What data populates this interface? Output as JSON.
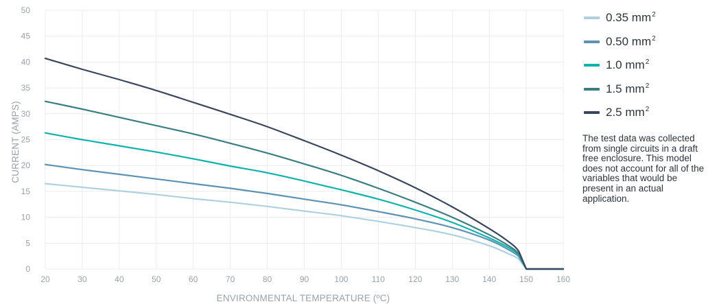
{
  "chart_data": {
    "type": "line",
    "xlabel": "ENVIRONMENTAL TEMPERATURE (ºC)",
    "ylabel": "CURRENT (AMPS)",
    "xlim": [
      20,
      160
    ],
    "ylim": [
      0,
      50
    ],
    "x_ticks": [
      20,
      30,
      40,
      50,
      60,
      70,
      80,
      90,
      100,
      110,
      120,
      130,
      140,
      150,
      160
    ],
    "y_ticks": [
      0,
      5,
      10,
      15,
      20,
      25,
      30,
      35,
      40,
      45,
      50
    ],
    "grid": true,
    "legend_position": "right",
    "x": [
      20,
      30,
      40,
      50,
      60,
      70,
      80,
      90,
      100,
      110,
      120,
      130,
      140,
      145,
      148,
      150,
      155,
      160
    ],
    "series": [
      {
        "name": "0.35 mm",
        "color": "#aed1dd",
        "values": [
          16.5,
          15.8,
          15.1,
          14.4,
          13.6,
          12.9,
          12.1,
          11.2,
          10.3,
          9.2,
          8.0,
          6.6,
          4.5,
          3.0,
          1.9,
          0,
          0,
          0
        ]
      },
      {
        "name": "0.50 mm",
        "color": "#5e92b4",
        "values": [
          20.2,
          19.2,
          18.3,
          17.4,
          16.5,
          15.6,
          14.6,
          13.5,
          12.4,
          11.1,
          9.7,
          8.0,
          5.6,
          3.8,
          2.4,
          0,
          0,
          0
        ]
      },
      {
        "name": "1.0 mm",
        "color": "#0fb3ab",
        "values": [
          26.3,
          25.0,
          23.8,
          22.6,
          21.3,
          19.9,
          18.6,
          17.0,
          15.3,
          13.5,
          11.4,
          9.0,
          6.0,
          4.2,
          2.7,
          0,
          0,
          0
        ]
      },
      {
        "name": "1.5 mm",
        "color": "#3b7e80",
        "values": [
          32.4,
          30.9,
          29.3,
          27.7,
          26.1,
          24.3,
          22.4,
          20.3,
          18.1,
          15.6,
          12.9,
          10.0,
          6.6,
          4.6,
          2.9,
          0,
          0,
          0
        ]
      },
      {
        "name": "2.5 mm",
        "color": "#39465b",
        "values": [
          40.7,
          38.6,
          36.6,
          34.5,
          32.2,
          29.9,
          27.5,
          24.8,
          22.0,
          19.0,
          15.7,
          12.0,
          7.8,
          5.4,
          3.4,
          0,
          0,
          0
        ]
      }
    ]
  },
  "legend": {
    "unit_superscript": "2",
    "note": "The test data was collected from single circuits in a draft free enclosure. This model does not account for all of the variables that would be present in an actual application."
  }
}
